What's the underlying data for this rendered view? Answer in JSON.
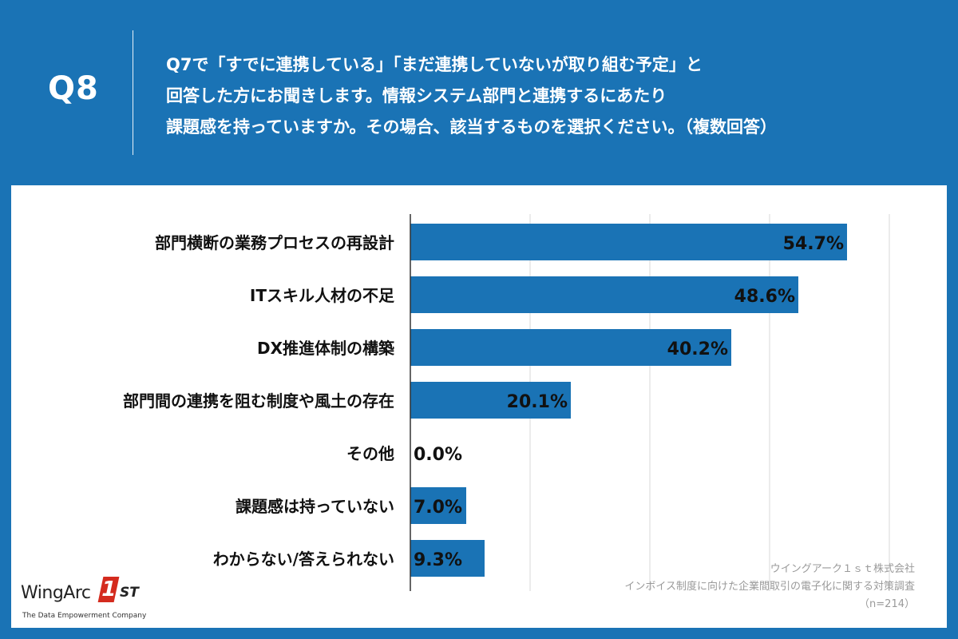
{
  "question": {
    "number": "Q8",
    "lines": [
      "Q7で「すでに連携している」「まだ連携していないが取り組む予定」と",
      "回答した方にお聞きします。情報システム部門と連携するにあたり",
      "課題感を持っていますか。その場合、該当するものを選択ください。（複数回答）"
    ]
  },
  "chart_data": {
    "type": "bar",
    "orientation": "horizontal",
    "categories": [
      "部門横断の業務プロセスの再設計",
      "ITスキル人材の不足",
      "DX推進体制の構築",
      "部門間の連携を阻む制度や風土の存在",
      "その他",
      "課題感は持っていない",
      "わからない/答えられない"
    ],
    "values": [
      54.7,
      48.6,
      40.2,
      20.1,
      0.0,
      7.0,
      9.3
    ],
    "labels": [
      "54.7%",
      "48.6%",
      "40.2%",
      "20.1%",
      "0.0%",
      "7.0%",
      "9.3%"
    ],
    "xlim": [
      0,
      60
    ],
    "grid": true,
    "bar_color": "#1a73b5"
  },
  "credit": {
    "company": "ウイングアーク１ｓｔ株式会社",
    "survey": "インボイス制度に向けた企業間取引の電子化に関する対策調査",
    "sample": "（n=214）"
  },
  "logo": {
    "name": "WingArc",
    "one": "1",
    "st": "ST",
    "tagline": "The Data Empowerment Company"
  }
}
